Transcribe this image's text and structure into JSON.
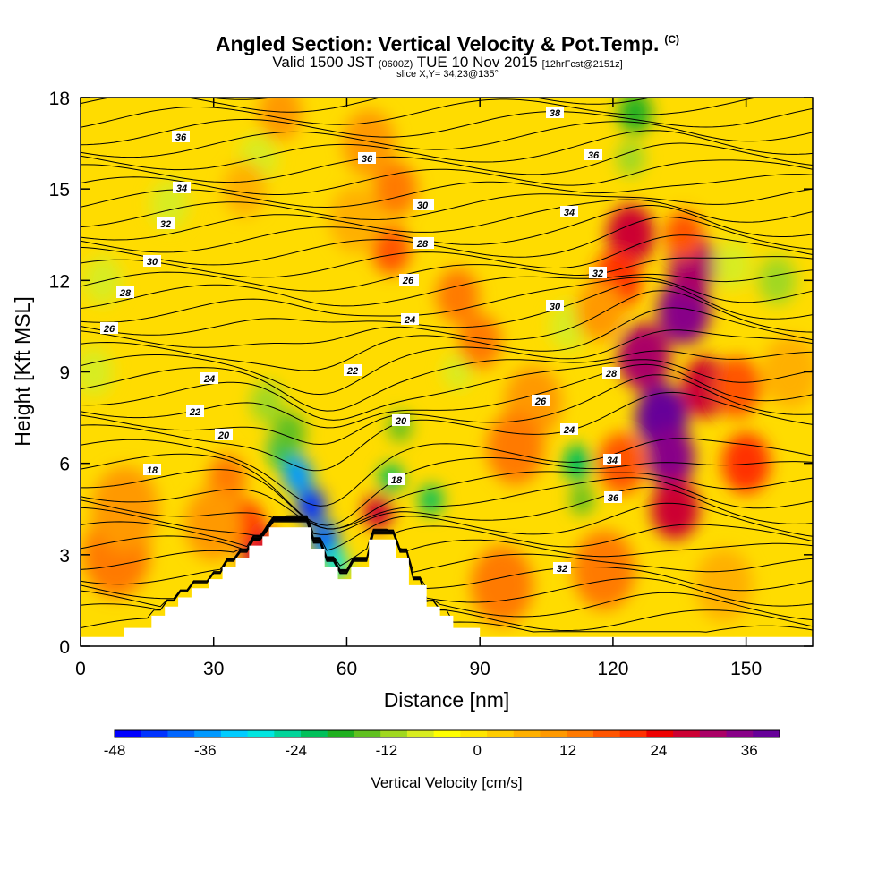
{
  "chart_data": {
    "type": "heatmap",
    "title": "Angled Section: Vertical Velocity & Pot.Temp.",
    "title_tag": "(C)",
    "subtitle_prefix": "Valid 1500 JST",
    "subtitle_zulu": "(0600Z)",
    "subtitle_date": "TUE 10 Nov 2015",
    "subtitle_forecast": "[12hrFcst@2151z]",
    "slice_info": "slice X,Y= 34,23@135°",
    "xlabel": "Distance [nm]",
    "ylabel": "Height [Kft MSL]",
    "xlim": [
      0,
      165
    ],
    "ylim": [
      0,
      18
    ],
    "x_ticks": [
      "0",
      "30",
      "60",
      "90",
      "120",
      "150"
    ],
    "y_ticks": [
      "0",
      "3",
      "6",
      "9",
      "12",
      "15",
      "18"
    ],
    "colorbar": {
      "label": "Vertical Velocity [cm/s]",
      "tick_labels": [
        "-48",
        "-36",
        "-24",
        "-12",
        "0",
        "12",
        "24",
        "36"
      ],
      "range": [
        -48,
        40
      ],
      "colors": [
        "#0000ff",
        "#0033ff",
        "#0066ff",
        "#0099ff",
        "#00ccff",
        "#00e5e0",
        "#00d49a",
        "#00c05a",
        "#20b020",
        "#60c020",
        "#a0d820",
        "#d8ec20",
        "#ffff00",
        "#ffe600",
        "#ffcc00",
        "#ffb000",
        "#ff9900",
        "#ff7a00",
        "#ff5500",
        "#ff3000",
        "#ee0000",
        "#cc0033",
        "#aa0066",
        "#880088",
        "#660099"
      ]
    },
    "terrain_kft": [
      [
        0,
        0.3
      ],
      [
        9.7,
        0.3
      ],
      [
        9.7,
        0.6
      ],
      [
        16,
        0.6
      ],
      [
        16,
        1.0
      ],
      [
        19,
        1.0
      ],
      [
        19,
        1.3
      ],
      [
        22,
        1.3
      ],
      [
        22,
        1.6
      ],
      [
        25,
        1.6
      ],
      [
        25,
        1.9
      ],
      [
        29,
        1.9
      ],
      [
        29,
        2.2
      ],
      [
        32,
        2.2
      ],
      [
        32,
        2.6
      ],
      [
        35,
        2.6
      ],
      [
        35,
        2.9
      ],
      [
        38,
        2.9
      ],
      [
        38,
        3.3
      ],
      [
        41,
        3.3
      ],
      [
        41,
        3.6
      ],
      [
        42.5,
        3.6
      ],
      [
        42.5,
        3.9
      ],
      [
        52,
        3.9
      ],
      [
        52,
        3.2
      ],
      [
        55,
        3.2
      ],
      [
        55,
        2.6
      ],
      [
        58,
        2.6
      ],
      [
        58,
        2.2
      ],
      [
        61,
        2.2
      ],
      [
        61,
        2.6
      ],
      [
        65,
        2.6
      ],
      [
        65,
        3.5
      ],
      [
        71,
        3.5
      ],
      [
        71,
        2.9
      ],
      [
        74,
        2.9
      ],
      [
        74,
        2.0
      ],
      [
        78,
        2.0
      ],
      [
        78,
        1.3
      ],
      [
        81,
        1.3
      ],
      [
        81,
        1.0
      ],
      [
        84,
        1.0
      ],
      [
        84,
        0.6
      ],
      [
        90,
        0.6
      ],
      [
        90,
        0.3
      ],
      [
        165,
        0.3
      ]
    ],
    "contour_labels": [
      "18",
      "20",
      "22",
      "24",
      "26",
      "28",
      "30",
      "32",
      "34",
      "36",
      "36",
      "34",
      "32",
      "30",
      "28",
      "26",
      "24",
      "22",
      "24",
      "26",
      "28",
      "30",
      "32",
      "34",
      "36",
      "38",
      "36",
      "34",
      "32",
      "30",
      "28",
      "26",
      "24",
      "22",
      "20",
      "18"
    ],
    "velocity_cells": [
      {
        "x": 33,
        "y": 5.5,
        "v": 14,
        "r": 0.8
      },
      {
        "x": 40,
        "y": 3.2,
        "v": 26,
        "r": 0.8
      },
      {
        "x": 37,
        "y": 4.0,
        "v": 22,
        "r": 0.8
      },
      {
        "x": 42,
        "y": 8.0,
        "v": -10,
        "r": 0.7
      },
      {
        "x": 46,
        "y": 6.5,
        "v": -20,
        "r": 0.7
      },
      {
        "x": 49,
        "y": 5.6,
        "v": -36,
        "r": 0.6
      },
      {
        "x": 52,
        "y": 4.6,
        "v": -44,
        "r": 0.6
      },
      {
        "x": 55,
        "y": 3.5,
        "v": -38,
        "r": 0.6
      },
      {
        "x": 57.5,
        "y": 2.7,
        "v": -30,
        "r": 0.5
      },
      {
        "x": 47,
        "y": 7.0,
        "v": -16,
        "r": 0.7
      },
      {
        "x": 67,
        "y": 4.4,
        "v": 28,
        "r": 0.6
      },
      {
        "x": 70,
        "y": 5.5,
        "v": -22,
        "r": 0.5
      },
      {
        "x": 72,
        "y": 7.2,
        "v": -14,
        "r": 0.5
      },
      {
        "x": 79,
        "y": 4.8,
        "v": -22,
        "r": 0.5
      },
      {
        "x": 85,
        "y": 9.0,
        "v": -8,
        "r": 0.6
      },
      {
        "x": 112,
        "y": 6.0,
        "v": -20,
        "r": 0.6
      },
      {
        "x": 113,
        "y": 4.8,
        "v": -16,
        "r": 0.5
      },
      {
        "x": 110,
        "y": 10.5,
        "v": -6,
        "r": 0.8
      },
      {
        "x": 124,
        "y": 13.5,
        "v": 26,
        "r": 1.0
      },
      {
        "x": 121,
        "y": 12.0,
        "v": 22,
        "r": 1.0
      },
      {
        "x": 127,
        "y": 9.5,
        "v": 32,
        "r": 1.1
      },
      {
        "x": 131,
        "y": 7.5,
        "v": 38,
        "r": 1.1
      },
      {
        "x": 133,
        "y": 6.2,
        "v": 36,
        "r": 1.0
      },
      {
        "x": 134,
        "y": 4.5,
        "v": 28,
        "r": 1.0
      },
      {
        "x": 136,
        "y": 11.0,
        "v": 34,
        "r": 1.1
      },
      {
        "x": 138,
        "y": 12.5,
        "v": 30,
        "r": 1.0
      },
      {
        "x": 141,
        "y": 8.5,
        "v": 26,
        "r": 1.0
      },
      {
        "x": 150,
        "y": 6.0,
        "v": 22,
        "r": 1.0
      },
      {
        "x": 148,
        "y": 8.5,
        "v": 16,
        "r": 1.0
      },
      {
        "x": 122,
        "y": 6.0,
        "v": 18,
        "r": 1.0
      },
      {
        "x": 125,
        "y": 17.5,
        "v": -18,
        "r": 0.7
      },
      {
        "x": 124,
        "y": 16.0,
        "v": -10,
        "r": 0.6
      },
      {
        "x": 136,
        "y": 13.5,
        "v": 18,
        "r": 0.8
      },
      {
        "x": 147,
        "y": 12.5,
        "v": -6,
        "r": 0.8
      },
      {
        "x": 157,
        "y": 12.0,
        "v": -10,
        "r": 0.8
      },
      {
        "x": 102,
        "y": 8.0,
        "v": 10,
        "r": 1.2
      },
      {
        "x": 98,
        "y": 6.5,
        "v": 12,
        "r": 1.2
      },
      {
        "x": 85,
        "y": 11.5,
        "v": 14,
        "r": 0.9
      },
      {
        "x": 90,
        "y": 10.0,
        "v": 12,
        "r": 0.9
      },
      {
        "x": 71,
        "y": 15.0,
        "v": 14,
        "r": 0.9
      },
      {
        "x": 70,
        "y": 13.0,
        "v": 18,
        "r": 0.8
      },
      {
        "x": 65,
        "y": 16.5,
        "v": 10,
        "r": 1.1
      },
      {
        "x": 62,
        "y": 14.0,
        "v": 8,
        "r": 1.1
      },
      {
        "x": 8,
        "y": 3.0,
        "v": 12,
        "r": 1.4
      },
      {
        "x": 10,
        "y": 4.5,
        "v": 10,
        "r": 1.4
      },
      {
        "x": 30,
        "y": 4.0,
        "v": 10,
        "r": 1.2
      },
      {
        "x": 95,
        "y": 2.0,
        "v": 12,
        "r": 1.3
      },
      {
        "x": 118,
        "y": 2.5,
        "v": 14,
        "r": 1.3
      },
      {
        "x": 117,
        "y": 11.0,
        "v": 10,
        "r": 1.0
      },
      {
        "x": 40,
        "y": 16.0,
        "v": -8,
        "r": 0.8
      },
      {
        "x": 20,
        "y": 14.5,
        "v": -8,
        "r": 0.8
      },
      {
        "x": 5,
        "y": 12.0,
        "v": -6,
        "r": 0.8
      },
      {
        "x": 3,
        "y": 9.0,
        "v": -6,
        "r": 0.8
      },
      {
        "x": 45,
        "y": 17.5,
        "v": 10,
        "r": 0.9
      },
      {
        "x": 37,
        "y": 15.0,
        "v": 8,
        "r": 0.9
      },
      {
        "x": 145,
        "y": 2.0,
        "v": 8,
        "r": 1.2
      },
      {
        "x": 160,
        "y": 9.0,
        "v": 6,
        "r": 1.2
      }
    ]
  }
}
